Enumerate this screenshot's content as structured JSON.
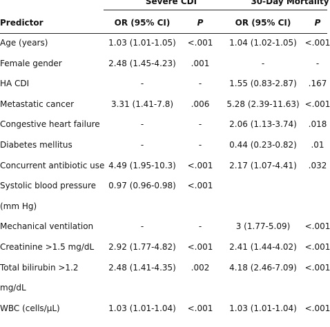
{
  "table": {
    "groups": [
      "Severe CDI",
      "30-Day Mortality"
    ],
    "columns": [
      "Predictor",
      "OR (95% CI)",
      "P",
      "OR (95% CI)",
      "P"
    ],
    "rows": [
      {
        "predictor": [
          "Age (years)"
        ],
        "cells": [
          "1.03 (1.01-1.05)",
          "<.001",
          "1.04 (1.02-1.05)",
          "<.001"
        ]
      },
      {
        "predictor": [
          "Female gender"
        ],
        "cells": [
          "2.48 (1.45-4.23)",
          ".001",
          "-",
          "-"
        ]
      },
      {
        "predictor": [
          "HA CDI"
        ],
        "cells": [
          "-",
          "-",
          "1.55 (0.83-2.87)",
          ".167"
        ]
      },
      {
        "predictor": [
          "Metastatic cancer"
        ],
        "cells": [
          "3.31 (1.41-7.8)",
          ".006",
          "5.28 (2.39-11.63)",
          "<.001"
        ]
      },
      {
        "predictor": [
          "Congestive heart failure"
        ],
        "cells": [
          "-",
          "-",
          "2.06 (1.13-3.74)",
          ".018"
        ]
      },
      {
        "predictor": [
          "Diabetes mellitus"
        ],
        "cells": [
          "-",
          "-",
          "0.44 (0.23-0.82)",
          ".01"
        ]
      },
      {
        "predictor": [
          "Concurrent antibiotic use"
        ],
        "cells": [
          "4.49 (1.95-10.3)",
          "<.001",
          "2.17 (1.07-4.41)",
          ".032"
        ]
      },
      {
        "predictor": [
          "Systolic blood pressure",
          "(mm Hg)"
        ],
        "cells": [
          "0.97 (0.96-0.98)",
          "<.001",
          "",
          ""
        ]
      },
      {
        "predictor": [
          "Mechanical ventilation"
        ],
        "cells": [
          "-",
          "-",
          "3 (1.77-5.09)",
          "<.001"
        ]
      },
      {
        "predictor": [
          "Creatinine >1.5 mg/dL"
        ],
        "cells": [
          "2.92 (1.77-4.82)",
          "<.001",
          "2.41 (1.44-4.02)",
          "<.001"
        ]
      },
      {
        "predictor": [
          "Total bilirubin >1.2",
          "mg/dL"
        ],
        "cells": [
          "2.48 (1.41-4.35)",
          ".002",
          "4.18 (2.46-7.09)",
          "<.001"
        ]
      },
      {
        "predictor": [
          "WBC (cells/μL)"
        ],
        "cells": [
          "1.03 (1.01-1.04)",
          "<.001",
          "1.03 (1.01-1.04)",
          "<.001"
        ]
      }
    ]
  }
}
